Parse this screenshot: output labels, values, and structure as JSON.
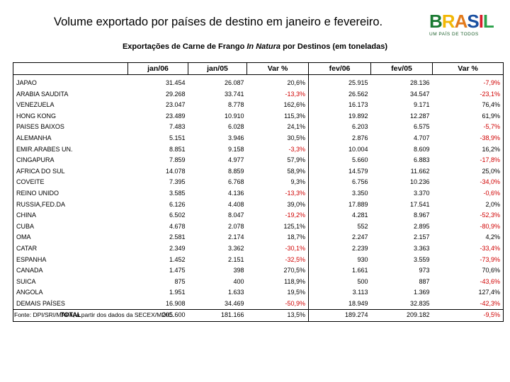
{
  "slide": {
    "title": "Volume  exportado por países de destino em janeiro e fevereiro."
  },
  "logo": {
    "letters": [
      "B",
      "R",
      "A",
      "S",
      "I",
      "L"
    ],
    "colors": [
      "#1a7a32",
      "#f2b705",
      "#e37b1c",
      "#1a4fa0",
      "#d81e2c",
      "#2aa14a"
    ],
    "tagline": "UM PAÍS DE TODOS"
  },
  "table": {
    "title_prefix": "Exportações de Carne de Frango ",
    "title_emph": "In Natura",
    "title_suffix": "  por Destinos (em toneladas)",
    "headers": [
      "jan/06",
      "jan/05",
      "Var %",
      "fev/06",
      "fev/05",
      "Var %"
    ],
    "rows": [
      {
        "country": "JAPAO",
        "jan06": "31.454",
        "jan05": "26.087",
        "varjan": "20,6%",
        "fev06": "25.915",
        "fev05": "28.136",
        "varfev": "-7,9%"
      },
      {
        "country": "ARABIA SAUDITA",
        "jan06": "29.268",
        "jan05": "33.741",
        "varjan": "-13,3%",
        "fev06": "26.562",
        "fev05": "34.547",
        "varfev": "-23,1%"
      },
      {
        "country": "VENEZUELA",
        "jan06": "23.047",
        "jan05": "8.778",
        "varjan": "162,6%",
        "fev06": "16.173",
        "fev05": "9.171",
        "varfev": "76,4%"
      },
      {
        "country": "HONG KONG",
        "jan06": "23.489",
        "jan05": "10.910",
        "varjan": "115,3%",
        "fev06": "19.892",
        "fev05": "12.287",
        "varfev": "61,9%"
      },
      {
        "country": "PAISES BAIXOS",
        "jan06": "7.483",
        "jan05": "6.028",
        "varjan": "24,1%",
        "fev06": "6.203",
        "fev05": "6.575",
        "varfev": "-5,7%"
      },
      {
        "country": "ALEMANHA",
        "jan06": "5.151",
        "jan05": "3.946",
        "varjan": "30,5%",
        "fev06": "2.876",
        "fev05": "4.707",
        "varfev": "-38,9%"
      },
      {
        "country": "EMIR.ARABES UN.",
        "jan06": "8.851",
        "jan05": "9.158",
        "varjan": "-3,3%",
        "fev06": "10.004",
        "fev05": "8.609",
        "varfev": "16,2%"
      },
      {
        "country": "CINGAPURA",
        "jan06": "7.859",
        "jan05": "4.977",
        "varjan": "57,9%",
        "fev06": "5.660",
        "fev05": "6.883",
        "varfev": "-17,8%"
      },
      {
        "country": "AFRICA DO SUL",
        "jan06": "14.078",
        "jan05": "8.859",
        "varjan": "58,9%",
        "fev06": "14.579",
        "fev05": "11.662",
        "varfev": "25,0%"
      },
      {
        "country": "COVEITE",
        "jan06": "7.395",
        "jan05": "6.768",
        "varjan": "9,3%",
        "fev06": "6.756",
        "fev05": "10.236",
        "varfev": "-34,0%"
      },
      {
        "country": "REINO UNIDO",
        "jan06": "3.585",
        "jan05": "4.136",
        "varjan": "-13,3%",
        "fev06": "3.350",
        "fev05": "3.370",
        "varfev": "-0,6%"
      },
      {
        "country": "RUSSIA,FED.DA",
        "jan06": "6.126",
        "jan05": "4.408",
        "varjan": "39,0%",
        "fev06": "17.889",
        "fev05": "17.541",
        "varfev": "2,0%"
      },
      {
        "country": "CHINA",
        "jan06": "6.502",
        "jan05": "8.047",
        "varjan": "-19,2%",
        "fev06": "4.281",
        "fev05": "8.967",
        "varfev": "-52,3%"
      },
      {
        "country": "CUBA",
        "jan06": "4.678",
        "jan05": "2.078",
        "varjan": "125,1%",
        "fev06": "552",
        "fev05": "2.895",
        "varfev": "-80,9%"
      },
      {
        "country": "OMA",
        "jan06": "2.581",
        "jan05": "2.174",
        "varjan": "18,7%",
        "fev06": "2.247",
        "fev05": "2.157",
        "varfev": "4,2%"
      },
      {
        "country": "CATAR",
        "jan06": "2.349",
        "jan05": "3.362",
        "varjan": "-30,1%",
        "fev06": "2.239",
        "fev05": "3.363",
        "varfev": "-33,4%"
      },
      {
        "country": "ESPANHA",
        "jan06": "1.452",
        "jan05": "2.151",
        "varjan": "-32,5%",
        "fev06": "930",
        "fev05": "3.559",
        "varfev": "-73,9%"
      },
      {
        "country": "CANADA",
        "jan06": "1.475",
        "jan05": "398",
        "varjan": "270,5%",
        "fev06": "1.661",
        "fev05": "973",
        "varfev": "70,6%"
      },
      {
        "country": "SUICA",
        "jan06": "875",
        "jan05": "400",
        "varjan": "118,9%",
        "fev06": "500",
        "fev05": "887",
        "varfev": "-43,6%"
      },
      {
        "country": "ANGOLA",
        "jan06": "1.951",
        "jan05": "1.633",
        "varjan": "19,5%",
        "fev06": "3.113",
        "fev05": "1.369",
        "varfev": "127,4%"
      },
      {
        "country": "DEMAIS PAÍSES",
        "jan06": "16.908",
        "jan05": "34.469",
        "varjan": "-50,9%",
        "fev06": "18.949",
        "fev05": "32.835",
        "varfev": "-42,3%"
      }
    ],
    "total": {
      "country": "TOTAL",
      "jan06": "205.600",
      "jan05": "181.166",
      "varjan": "13,5%",
      "fev06": "189.274",
      "fev05": "209.182",
      "varfev": "-9,5%"
    },
    "negative_color": "#d00000",
    "source": "Fonte: DPI/SRI/MAPA, a partir dos dados da SECEX/MDIC."
  }
}
